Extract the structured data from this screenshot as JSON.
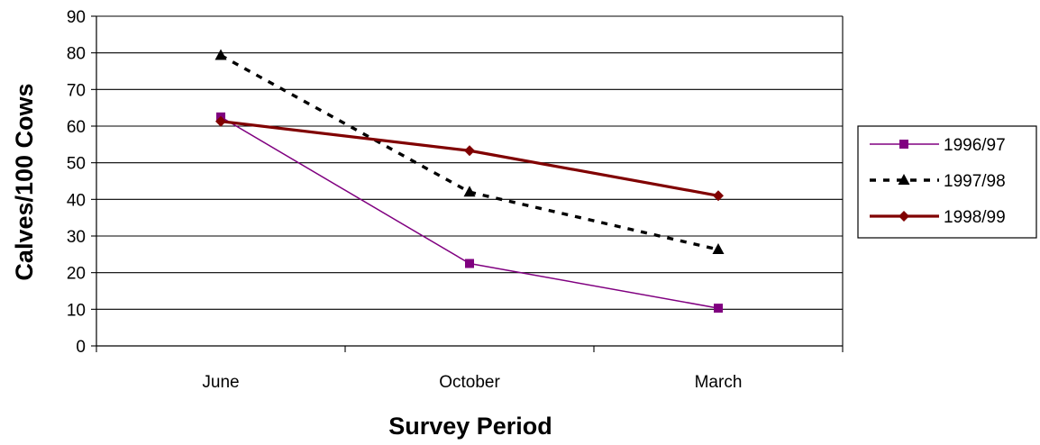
{
  "chart_data": {
    "type": "line",
    "title": "",
    "xlabel": "Survey Period",
    "ylabel": "Calves/100 Cows",
    "categories": [
      "June",
      "October",
      "March"
    ],
    "ylim": [
      0,
      90
    ],
    "yticks": [
      0,
      10,
      20,
      30,
      40,
      50,
      60,
      70,
      80,
      90
    ],
    "grid": true,
    "legend_position": "right",
    "series": [
      {
        "name": "1996/97",
        "values": [
          62.5,
          22.5,
          10.3
        ],
        "color": "#800080",
        "marker": "square",
        "line_style": "solid",
        "line_weight": "thin"
      },
      {
        "name": "1997/98",
        "values": [
          79.3,
          42.0,
          26.3
        ],
        "color": "#000000",
        "marker": "triangle",
        "line_style": "dotted",
        "line_weight": "medium"
      },
      {
        "name": "1998/99",
        "values": [
          61.3,
          53.3,
          41.0
        ],
        "color": "#800000",
        "marker": "diamond",
        "line_style": "solid",
        "line_weight": "thick"
      }
    ]
  }
}
